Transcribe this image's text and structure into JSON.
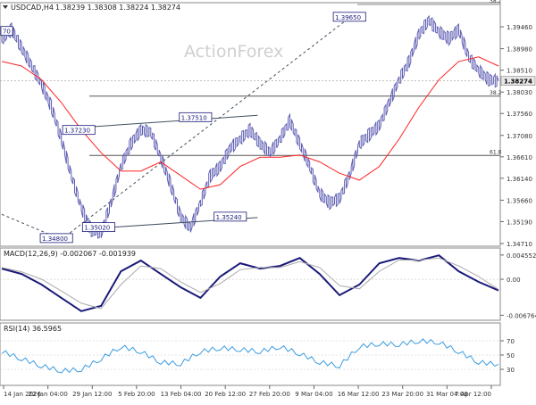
{
  "header": {
    "symbol_label": "USDCAD,H4",
    "ohlc_values": "1.38239 1.38308 1.38224 1.38274"
  },
  "watermark": "ActionForex",
  "colors": {
    "price": "#5f5fb4",
    "ma": "#ff2222",
    "macd": "#1a1a7a",
    "signal": "#aaaaaa",
    "rsi": "#3a9ce0",
    "trendline": "#405060",
    "level": "#555555",
    "current_price_box": "#e8e8e8",
    "grid": "#c8c8c8"
  },
  "chart_data": [
    {
      "type": "line",
      "panel": "price",
      "title": "",
      "ylim": [
        1.3471,
        1.3995
      ],
      "y_ticks": [
        "1.39460",
        "1.38980",
        "1.38510",
        "1.38030",
        "1.37560",
        "1.37080",
        "1.36610",
        "1.36140",
        "1.35660",
        "1.35190",
        "1.34710"
      ],
      "x_ticks": [
        "14 Jan 2026",
        "22 Jan 04:00",
        "29 Jan 12:00",
        "5 Feb 20:00",
        "13 Feb 04:00",
        "20 Feb 12:00",
        "27 Feb 20:00",
        "9 Mar 04:00",
        "16 Mar 12:00",
        "23 Mar 20:00",
        "31 Mar 04:00",
        "7 Apr 12:00"
      ],
      "current_price": "1.38274",
      "series": [
        {
          "name": "",
          "role": "price",
          "x": [
            0,
            4,
            8,
            12,
            16,
            20,
            24,
            28,
            32,
            36,
            40,
            44,
            48,
            52,
            56,
            60,
            64,
            68,
            72,
            76,
            80,
            84,
            88,
            92,
            96,
            100,
            104,
            108,
            112,
            116,
            120,
            124,
            128,
            132,
            136,
            140,
            144,
            148,
            152,
            156,
            160,
            164,
            168,
            172,
            176,
            180,
            184,
            188,
            192,
            196,
            200
          ],
          "values": [
            1.392,
            1.394,
            1.39,
            1.386,
            1.382,
            1.377,
            1.37,
            1.362,
            1.355,
            1.35,
            1.3495,
            1.356,
            1.364,
            1.369,
            1.372,
            1.3715,
            1.366,
            1.36,
            1.353,
            1.3505,
            1.356,
            1.362,
            1.364,
            1.368,
            1.37,
            1.372,
            1.369,
            1.367,
            1.37,
            1.374,
            1.369,
            1.364,
            1.358,
            1.356,
            1.357,
            1.362,
            1.369,
            1.371,
            1.373,
            1.378,
            1.383,
            1.387,
            1.393,
            1.396,
            1.3935,
            1.392,
            1.394,
            1.388,
            1.385,
            1.383,
            1.3827
          ]
        },
        {
          "name": "",
          "role": "moving-average",
          "x": [
            0,
            8,
            16,
            24,
            32,
            40,
            48,
            56,
            64,
            72,
            80,
            88,
            96,
            104,
            112,
            120,
            128,
            136,
            144,
            152,
            160,
            168,
            176,
            184,
            192,
            200
          ],
          "values": [
            1.387,
            1.386,
            1.383,
            1.378,
            1.372,
            1.367,
            1.363,
            1.363,
            1.365,
            1.362,
            1.359,
            1.36,
            1.364,
            1.366,
            1.366,
            1.3665,
            1.365,
            1.3625,
            1.361,
            1.364,
            1.37,
            1.377,
            1.383,
            1.387,
            1.388,
            1.386
          ]
        }
      ],
      "levels": [
        {
          "label": "38.2",
          "value": 1.3995
        },
        {
          "label": "38.2",
          "value": 1.3794
        },
        {
          "label": "61.8",
          "value": 1.3664
        }
      ],
      "annotations": [
        {
          "label": "70",
          "x": 2,
          "value": 1.3935
        },
        {
          "label": "1.37230",
          "x": 31,
          "value": 1.3718
        },
        {
          "label": "1.37510",
          "x": 78,
          "value": 1.3746
        },
        {
          "label": "1.34800",
          "x": 22,
          "value": 1.3481
        },
        {
          "label": "1.35020",
          "x": 39,
          "value": 1.3505
        },
        {
          "label": "1.35240",
          "x": 92,
          "value": 1.3528
        },
        {
          "label": "1.39650",
          "x": 140,
          "value": 1.3966
        }
      ],
      "trend_channels": [
        {
          "from": [
            40,
            1.3505
          ],
          "to": [
            103,
            1.3528
          ]
        },
        {
          "from": [
            31,
            1.3725
          ],
          "to": [
            103,
            1.3752
          ]
        },
        {
          "from": [
            0,
            1.3535
          ],
          "to": [
            24,
            1.348
          ]
        },
        {
          "from": [
            24,
            1.348
          ],
          "to": [
            140,
            1.3966
          ]
        }
      ]
    },
    {
      "type": "line",
      "panel": "macd",
      "title": "MACD(12,26,9) -0.002067 -0.001939",
      "ylim": [
        -0.0072,
        0.0052
      ],
      "y_ticks": [
        "0.004552",
        "0.00",
        "-0.006764"
      ],
      "series": [
        {
          "name": "",
          "role": "macd",
          "x": [
            0,
            8,
            16,
            24,
            32,
            40,
            48,
            56,
            64,
            72,
            80,
            88,
            96,
            104,
            112,
            120,
            128,
            136,
            144,
            152,
            160,
            168,
            176,
            184,
            192,
            200
          ],
          "values": [
            0.002,
            0.001,
            -0.001,
            -0.0035,
            -0.006,
            -0.005,
            0.0015,
            0.0035,
            0.001,
            -0.0015,
            -0.0035,
            0.0005,
            0.003,
            0.002,
            0.0025,
            0.004,
            0.001,
            -0.003,
            -0.001,
            0.003,
            0.004,
            0.0035,
            0.0045,
            0.0015,
            -0.0005,
            -0.0021
          ]
        },
        {
          "name": "",
          "role": "signal",
          "x": [
            0,
            8,
            16,
            24,
            32,
            40,
            48,
            56,
            64,
            72,
            80,
            88,
            96,
            104,
            112,
            120,
            128,
            136,
            144,
            152,
            160,
            168,
            176,
            184,
            192,
            200
          ],
          "values": [
            0.0022,
            0.0014,
            0.0,
            -0.0022,
            -0.0045,
            -0.0055,
            -0.001,
            0.0025,
            0.002,
            -0.0005,
            -0.0025,
            -0.0008,
            0.0018,
            0.0022,
            0.0022,
            0.0033,
            0.0022,
            -0.0012,
            -0.0018,
            0.0015,
            0.0036,
            0.0036,
            0.004,
            0.0025,
            0.0005,
            -0.0019
          ]
        }
      ]
    },
    {
      "type": "line",
      "panel": "rsi",
      "title": "RSI(14) 36.5965",
      "ylim": [
        10,
        90
      ],
      "y_ticks": [
        "70",
        "50",
        "30"
      ],
      "series": [
        {
          "name": "",
          "role": "rsi",
          "x": [
            0,
            8,
            16,
            24,
            32,
            40,
            48,
            56,
            64,
            72,
            80,
            88,
            96,
            104,
            112,
            120,
            128,
            136,
            144,
            152,
            160,
            168,
            176,
            184,
            192,
            200
          ],
          "values": [
            55,
            45,
            35,
            28,
            30,
            45,
            62,
            55,
            40,
            38,
            55,
            60,
            58,
            55,
            62,
            52,
            40,
            35,
            62,
            66,
            65,
            70,
            68,
            55,
            40,
            37
          ]
        }
      ]
    }
  ]
}
